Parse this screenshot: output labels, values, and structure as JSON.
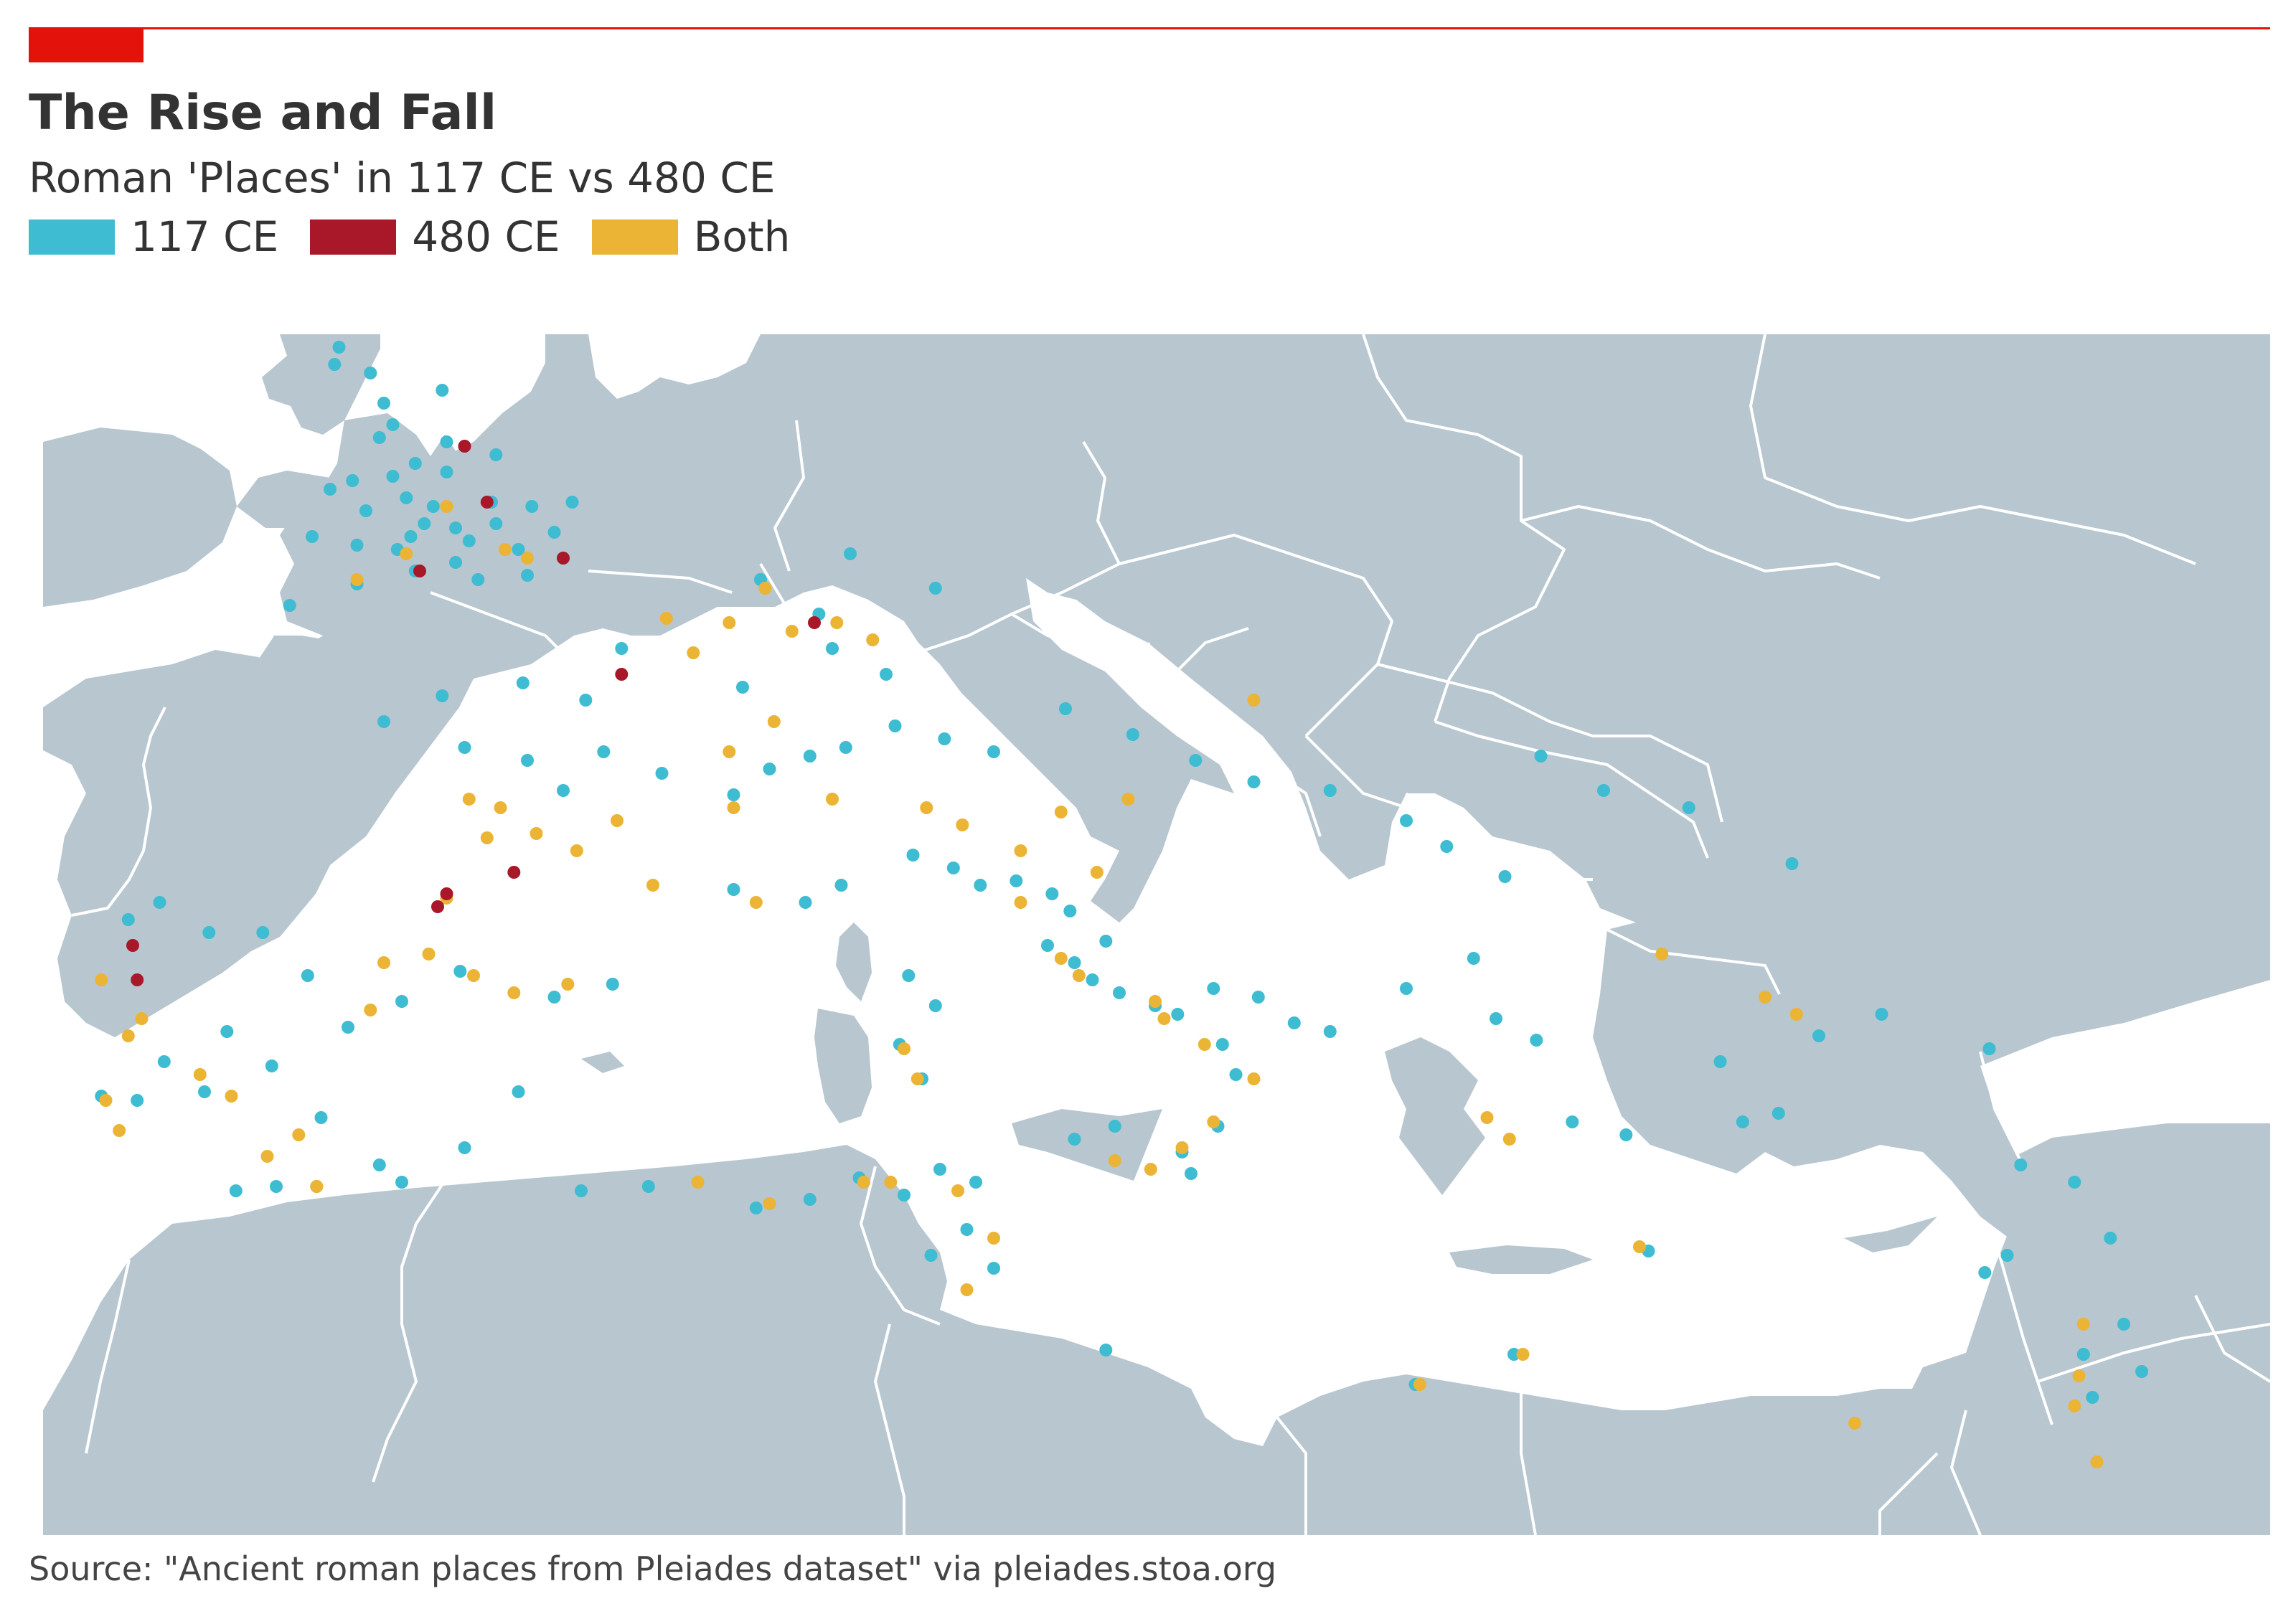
{
  "header": {
    "title": "The Rise and Fall",
    "subtitle": "Roman 'Places' in 117 CE vs 480 CE",
    "accent_color": "#e3120b"
  },
  "legend": [
    {
      "key": "c117",
      "label": "117 CE",
      "color": "#3ebcd2"
    },
    {
      "key": "c480",
      "label": "480 CE",
      "color": "#a81829"
    },
    {
      "key": "both",
      "label": "Both",
      "color": "#ebb434"
    }
  ],
  "map": {
    "region": "Mediterranean and Europe",
    "land_color": "#b7c6cf",
    "sea_color": "#ffffff",
    "border_color": "#ffffff",
    "places_117": [
      [
        -1.6,
        55.2
      ],
      [
        -2.9,
        54.9
      ],
      [
        -3.2,
        55.6
      ],
      [
        -4.0,
        55.8
      ],
      [
        -3.9,
        56.2
      ],
      [
        -2.7,
        54.4
      ],
      [
        -3.0,
        54.1
      ],
      [
        -1.5,
        54.0
      ],
      [
        -2.2,
        53.5
      ],
      [
        -1.1,
        53.9
      ],
      [
        -0.4,
        53.7
      ],
      [
        -1.5,
        53.3
      ],
      [
        -2.7,
        53.2
      ],
      [
        -3.6,
        53.1
      ],
      [
        -4.1,
        52.9
      ],
      [
        -3.3,
        52.4
      ],
      [
        -2.4,
        52.7
      ],
      [
        -1.8,
        52.5
      ],
      [
        -0.5,
        52.6
      ],
      [
        0.4,
        52.5
      ],
      [
        1.3,
        52.6
      ],
      [
        -1.3,
        52.0
      ],
      [
        -2.3,
        51.8
      ],
      [
        -2.6,
        51.5
      ],
      [
        -3.5,
        51.6
      ],
      [
        -4.5,
        51.8
      ],
      [
        0.1,
        51.5
      ],
      [
        0.9,
        51.9
      ],
      [
        1.1,
        51.3
      ],
      [
        -1.3,
        51.2
      ],
      [
        -2.2,
        51.0
      ],
      [
        -3.5,
        50.7
      ],
      [
        -0.8,
        50.8
      ],
      [
        0.3,
        50.9
      ],
      [
        -5.0,
        50.2
      ],
      [
        -2.0,
        52.1
      ],
      [
        -0.4,
        52.1
      ],
      [
        -1.0,
        51.7
      ],
      [
        5.5,
        50.8
      ],
      [
        7.5,
        51.4
      ],
      [
        9.4,
        50.6
      ],
      [
        6.8,
        50.0
      ],
      [
        7.1,
        49.2
      ],
      [
        8.3,
        48.6
      ],
      [
        5.1,
        48.3
      ],
      [
        2.4,
        49.2
      ],
      [
        1.6,
        48.0
      ],
      [
        0.2,
        48.4
      ],
      [
        -1.6,
        48.1
      ],
      [
        -2.9,
        47.5
      ],
      [
        -1.1,
        46.9
      ],
      [
        0.3,
        46.6
      ],
      [
        1.1,
        45.9
      ],
      [
        2.0,
        46.8
      ],
      [
        3.3,
        46.3
      ],
      [
        4.9,
        45.8
      ],
      [
        5.7,
        46.4
      ],
      [
        6.6,
        46.7
      ],
      [
        7.4,
        46.9
      ],
      [
        8.5,
        47.4
      ],
      [
        9.6,
        47.1
      ],
      [
        10.7,
        46.8
      ],
      [
        12.3,
        47.8
      ],
      [
        13.8,
        47.2
      ],
      [
        15.2,
        46.6
      ],
      [
        16.5,
        46.1
      ],
      [
        18.2,
        45.9
      ],
      [
        19.9,
        45.2
      ],
      [
        20.8,
        44.6
      ],
      [
        22.9,
        46.7
      ],
      [
        24.3,
        45.9
      ],
      [
        26.2,
        45.5
      ],
      [
        28.5,
        44.2
      ],
      [
        22.1,
        43.9
      ],
      [
        21.4,
        42.0
      ],
      [
        19.9,
        41.3
      ],
      [
        21.9,
        40.6
      ],
      [
        22.8,
        40.1
      ],
      [
        23.6,
        38.2
      ],
      [
        24.8,
        37.9
      ],
      [
        26.9,
        39.6
      ],
      [
        28.2,
        38.4
      ],
      [
        27.4,
        38.2
      ],
      [
        29.1,
        40.2
      ],
      [
        30.5,
        40.7
      ],
      [
        32.9,
        39.9
      ],
      [
        33.6,
        37.2
      ],
      [
        34.8,
        36.8
      ],
      [
        35.6,
        35.5
      ],
      [
        35.9,
        33.5
      ],
      [
        36.3,
        32.4
      ],
      [
        35.2,
        31.8
      ],
      [
        35.0,
        32.8
      ],
      [
        33.3,
        35.1
      ],
      [
        32.8,
        34.7
      ],
      [
        25.3,
        35.2
      ],
      [
        -8.6,
        42.9
      ],
      [
        -7.9,
        43.3
      ],
      [
        -6.8,
        42.6
      ],
      [
        -5.6,
        42.6
      ],
      [
        -4.6,
        41.6
      ],
      [
        -3.7,
        40.4
      ],
      [
        -2.5,
        41.0
      ],
      [
        -1.2,
        41.7
      ],
      [
        0.9,
        41.1
      ],
      [
        2.2,
        41.4
      ],
      [
        -6.4,
        40.3
      ],
      [
        -7.8,
        39.6
      ],
      [
        -8.4,
        38.7
      ],
      [
        -9.2,
        38.8
      ],
      [
        -6.9,
        38.9
      ],
      [
        -5.4,
        39.5
      ],
      [
        -4.3,
        38.3
      ],
      [
        -3.0,
        37.2
      ],
      [
        -5.3,
        36.7
      ],
      [
        -6.2,
        36.6
      ],
      [
        -4.4,
        36.7
      ],
      [
        -2.5,
        36.8
      ],
      [
        -1.1,
        37.6
      ],
      [
        0.1,
        38.9
      ],
      [
        4.9,
        43.6
      ],
      [
        6.5,
        43.3
      ],
      [
        7.3,
        43.7
      ],
      [
        8.9,
        44.4
      ],
      [
        9.8,
        44.1
      ],
      [
        10.4,
        43.7
      ],
      [
        11.2,
        43.8
      ],
      [
        12.4,
        43.1
      ],
      [
        12.5,
        41.9
      ],
      [
        12.9,
        41.5
      ],
      [
        13.5,
        41.2
      ],
      [
        14.3,
        40.9
      ],
      [
        14.8,
        40.7
      ],
      [
        15.6,
        41.3
      ],
      [
        16.6,
        41.1
      ],
      [
        17.4,
        40.5
      ],
      [
        18.2,
        40.3
      ],
      [
        16.1,
        39.3
      ],
      [
        15.7,
        38.1
      ],
      [
        14.9,
        37.5
      ],
      [
        13.4,
        38.1
      ],
      [
        12.5,
        37.8
      ],
      [
        15.1,
        37.0
      ],
      [
        9.1,
        39.2
      ],
      [
        8.6,
        40.0
      ],
      [
        9.4,
        40.9
      ],
      [
        8.8,
        41.6
      ],
      [
        1.5,
        36.6
      ],
      [
        3.0,
        36.7
      ],
      [
        5.4,
        36.2
      ],
      [
        6.6,
        36.4
      ],
      [
        7.7,
        36.9
      ],
      [
        8.7,
        36.5
      ],
      [
        9.5,
        37.1
      ],
      [
        10.3,
        36.8
      ],
      [
        10.1,
        35.7
      ],
      [
        9.3,
        35.1
      ],
      [
        10.7,
        34.8
      ],
      [
        20.1,
        32.1
      ],
      [
        22.3,
        32.8
      ],
      [
        13.2,
        32.9
      ],
      [
        12.0,
        43.5
      ],
      [
        13.2,
        42.4
      ],
      [
        11.9,
        42.3
      ],
      [
        15.8,
        40.0
      ]
    ],
    "places_480": [
      [
        -1.1,
        53.9
      ],
      [
        -0.6,
        52.6
      ],
      [
        -2.1,
        51.0
      ],
      [
        1.1,
        51.3
      ],
      [
        6.7,
        49.8
      ],
      [
        2.4,
        48.6
      ],
      [
        0.0,
        44.0
      ],
      [
        -1.5,
        43.5
      ],
      [
        -8.5,
        42.3
      ],
      [
        -8.4,
        41.5
      ],
      [
        -1.7,
        43.2
      ]
    ],
    "places_both": [
      [
        -1.5,
        52.5
      ],
      [
        -2.4,
        51.4
      ],
      [
        -0.2,
        51.5
      ],
      [
        -3.5,
        50.8
      ],
      [
        0.3,
        51.3
      ],
      [
        5.6,
        50.6
      ],
      [
        6.2,
        49.6
      ],
      [
        4.0,
        49.1
      ],
      [
        3.4,
        49.9
      ],
      [
        4.8,
        49.8
      ],
      [
        8.0,
        49.4
      ],
      [
        7.2,
        49.8
      ],
      [
        5.8,
        47.5
      ],
      [
        4.8,
        46.8
      ],
      [
        4.9,
        45.5
      ],
      [
        2.3,
        45.2
      ],
      [
        1.4,
        44.5
      ],
      [
        0.5,
        44.9
      ],
      [
        -0.6,
        44.8
      ],
      [
        -0.3,
        45.5
      ],
      [
        -1.0,
        45.7
      ],
      [
        3.1,
        43.7
      ],
      [
        5.4,
        43.3
      ],
      [
        7.1,
        45.7
      ],
      [
        9.2,
        45.5
      ],
      [
        10.0,
        45.1
      ],
      [
        11.3,
        44.5
      ],
      [
        12.2,
        45.4
      ],
      [
        13.7,
        45.7
      ],
      [
        13.0,
        44.0
      ],
      [
        11.3,
        43.3
      ],
      [
        12.2,
        42.0
      ],
      [
        12.6,
        41.6
      ],
      [
        14.3,
        41.0
      ],
      [
        14.5,
        40.6
      ],
      [
        15.4,
        40.0
      ],
      [
        16.5,
        39.2
      ],
      [
        15.6,
        38.2
      ],
      [
        13.4,
        37.3
      ],
      [
        14.9,
        37.6
      ],
      [
        14.2,
        37.1
      ],
      [
        9.0,
        39.2
      ],
      [
        8.7,
        39.9
      ],
      [
        4.1,
        36.8
      ],
      [
        5.7,
        36.3
      ],
      [
        7.8,
        36.8
      ],
      [
        9.9,
        36.6
      ],
      [
        10.7,
        35.5
      ],
      [
        10.1,
        34.3
      ],
      [
        20.2,
        32.1
      ],
      [
        22.5,
        32.8
      ],
      [
        29.9,
        31.2
      ],
      [
        34.8,
        31.6
      ],
      [
        34.9,
        32.3
      ],
      [
        35.0,
        33.5
      ],
      [
        35.3,
        30.3
      ],
      [
        16.5,
        48.0
      ],
      [
        25.6,
        42.1
      ],
      [
        27.9,
        41.1
      ],
      [
        28.6,
        40.7
      ],
      [
        25.1,
        35.3
      ],
      [
        -9.1,
        38.7
      ],
      [
        -8.6,
        40.2
      ],
      [
        -8.3,
        40.6
      ],
      [
        -9.2,
        41.5
      ],
      [
        -6.3,
        38.8
      ],
      [
        -7.0,
        39.3
      ],
      [
        -5.5,
        37.4
      ],
      [
        -4.8,
        37.9
      ],
      [
        -3.2,
        40.8
      ],
      [
        -1.9,
        42.1
      ],
      [
        -0.9,
        41.6
      ],
      [
        -1.5,
        43.4
      ],
      [
        0.0,
        41.2
      ],
      [
        1.2,
        41.4
      ],
      [
        -8.8,
        38.0
      ],
      [
        -4.4,
        36.7
      ],
      [
        -2.9,
        41.9
      ],
      [
        8.4,
        36.8
      ],
      [
        21.7,
        38.3
      ],
      [
        22.2,
        37.8
      ]
    ]
  },
  "source": "Source: \"Ancient roman places from Pleiades dataset\" via pleiades.stoa.org"
}
